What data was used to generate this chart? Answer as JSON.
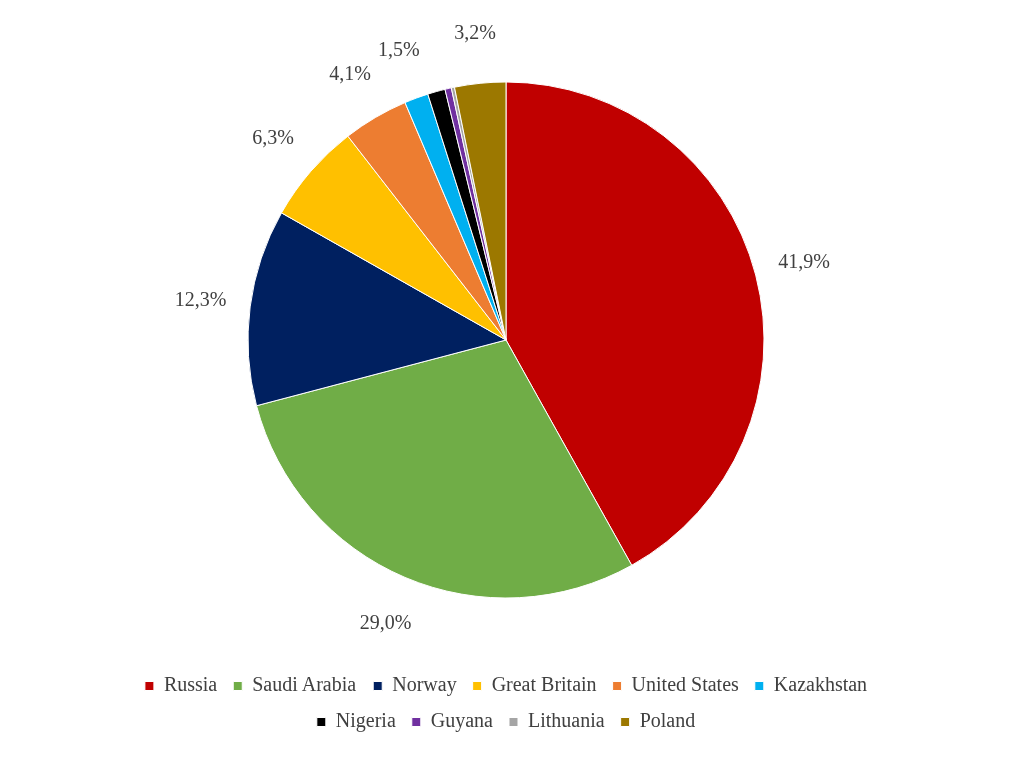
{
  "chart_data": {
    "type": "pie",
    "categories": [
      "Russia",
      "Saudi Arabia",
      "Norway",
      "Great Britain",
      "United States",
      "Kazakhstan",
      "Nigeria",
      "Guyana",
      "Lithuania",
      "Poland"
    ],
    "values": [
      41.9,
      29.0,
      12.3,
      6.3,
      4.1,
      1.5,
      1.1,
      0.4,
      0.2,
      3.2
    ],
    "value_labels": [
      "41,9%",
      "29,0%",
      "12,3%",
      "6,3%",
      "4,1%",
      "1,5%",
      null,
      null,
      null,
      "3,2%"
    ],
    "colors": [
      "#c00000",
      "#70ad47",
      "#002060",
      "#ffc000",
      "#ed7d31",
      "#00b0f0",
      "#000000",
      "#7030a0",
      "#a5a5a5",
      "#9c7800"
    ],
    "legend": "bottom"
  }
}
